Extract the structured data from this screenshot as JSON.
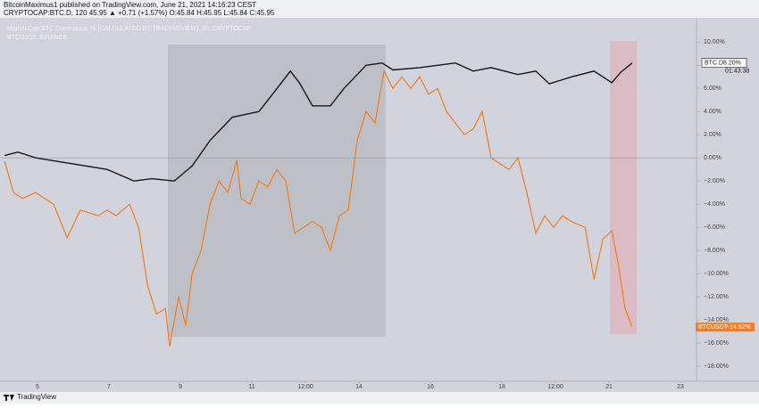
{
  "header": {
    "publisher": "BitcoinMaximus1 published on TradingView.com, June 21, 2021 14:16:23 CEST",
    "symbol_line": "CRYPTOCAP:BTC.D, 120  45.95 ▲ +0.71 (+1.57%)  O:45.84  H:45.95  L:45.84  C:45.95"
  },
  "chart_data": {
    "type": "line",
    "legend": [
      "Market Cap BTC Dominance, % (CALCULATED BY TRADINGVIEW), 2h, CRYPTOCAP",
      "BTCUSDT, BINANCE"
    ],
    "xlim": [
      3.95,
      23.45
    ],
    "xticks": [
      5,
      7,
      9,
      11,
      {
        "value": 12.5,
        "label": "12:00"
      },
      14,
      16,
      18,
      {
        "value": 19.5,
        "label": "12:00"
      },
      21,
      23
    ],
    "ylim": [
      -19.3,
      12.1
    ],
    "yticks": [
      {
        "value": 10,
        "label": "10.00%"
      },
      {
        "value": 8,
        "label": "8.00%"
      },
      {
        "value": 6,
        "label": "6.00%"
      },
      {
        "value": 4,
        "label": "4.00%"
      },
      {
        "value": 2,
        "label": "2.00%"
      },
      {
        "value": 0,
        "label": "0.00%"
      },
      {
        "value": -2,
        "label": "−2.00%"
      },
      {
        "value": -4,
        "label": "−4.00%"
      },
      {
        "value": -6,
        "label": "−6.00%"
      },
      {
        "value": -8,
        "label": "−8.00%"
      },
      {
        "value": -10,
        "label": "−10.00%"
      },
      {
        "value": -12,
        "label": "−12.00%"
      },
      {
        "value": -14,
        "label": "−14.00%"
      },
      {
        "value": -16,
        "label": "−16.00%"
      },
      {
        "value": -18,
        "label": "−18.00%"
      }
    ],
    "series": [
      {
        "name": "BTC.D",
        "color": "#131722",
        "x": [
          4.08,
          4.45,
          4.95,
          5.95,
          6.95,
          7.7,
          8.2,
          8.83,
          9.33,
          9.83,
          10.45,
          11.2,
          11.58,
          12.08,
          12.33,
          12.7,
          13.2,
          13.58,
          14.2,
          14.65,
          14.95,
          15.7,
          16.7,
          17.2,
          17.7,
          18.45,
          18.95,
          19.33,
          19.95,
          20.58,
          21.08,
          21.33,
          21.65
        ],
        "values": [
          0.2,
          0.5,
          0,
          -0.5,
          -1,
          -2,
          -1.8,
          -2,
          -0.7,
          1.5,
          3.5,
          4,
          5.5,
          7.5,
          6.5,
          4.5,
          4.5,
          6,
          8,
          8.2,
          7.6,
          7.8,
          8.2,
          7.5,
          7.8,
          7.2,
          7.5,
          6.4,
          7,
          7.5,
          6.5,
          7.4,
          8.2
        ],
        "last_value": {
          "value": 8.2,
          "label": "8.20%"
        },
        "countdown": "01:43:38"
      },
      {
        "name": "BTCUSDT",
        "color": "#f57c1f",
        "x": [
          4.08,
          4.33,
          4.58,
          4.95,
          5.2,
          5.45,
          5.83,
          6.2,
          6.7,
          6.95,
          7.2,
          7.58,
          7.83,
          8.08,
          8.33,
          8.58,
          8.7,
          8.95,
          9.15,
          9.33,
          9.58,
          9.83,
          10.08,
          10.33,
          10.58,
          10.7,
          10.95,
          11.2,
          11.45,
          11.7,
          11.95,
          12.2,
          12.45,
          12.7,
          12.95,
          13.2,
          13.45,
          13.7,
          13.95,
          14.2,
          14.45,
          14.7,
          14.95,
          15.2,
          15.45,
          15.7,
          15.95,
          16.2,
          16.45,
          16.7,
          16.95,
          17.2,
          17.45,
          17.7,
          17.95,
          18.2,
          18.45,
          18.7,
          18.95,
          19.2,
          19.45,
          19.7,
          19.95,
          20.33,
          20.58,
          20.83,
          21.08,
          21.25,
          21.45,
          21.65
        ],
        "values": [
          -0.3,
          -3,
          -3.5,
          -3,
          -3.5,
          -4,
          -6.9,
          -4.5,
          -5,
          -4.5,
          -5,
          -4,
          -6,
          -11,
          -13.5,
          -13,
          -16.3,
          -12,
          -14.5,
          -10,
          -8,
          -4,
          -2,
          -3,
          -0.2,
          -3.5,
          -4,
          -2,
          -2.5,
          -1,
          -2,
          -6.5,
          -6,
          -5.5,
          -6,
          -8,
          -5,
          -4.5,
          1.5,
          4,
          3,
          7.5,
          6,
          7,
          6,
          7,
          5.5,
          6,
          4,
          3,
          2,
          2.5,
          4,
          0,
          -0.5,
          -1,
          0,
          -3,
          -6.5,
          -5,
          -6,
          -5,
          -5.5,
          -6,
          -10.5,
          -7,
          -6.3,
          -9,
          -13,
          -14.62
        ],
        "last_value": {
          "value": -14.62,
          "label": "−14.62%"
        }
      }
    ]
  },
  "footer": {
    "brand": "TradingView"
  }
}
